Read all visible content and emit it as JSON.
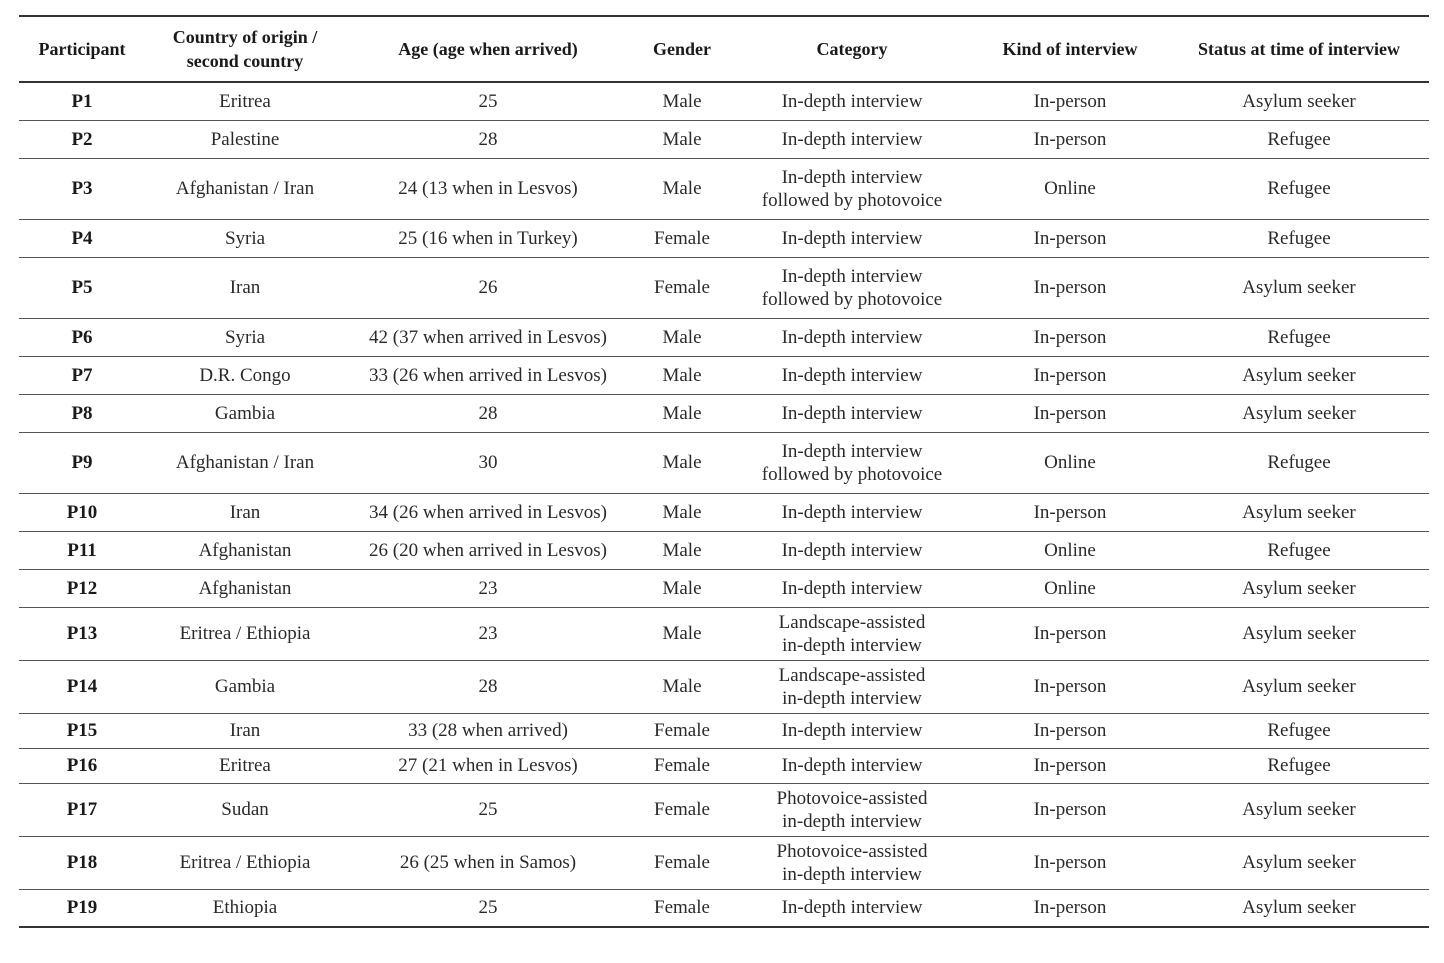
{
  "table": {
    "headers": [
      [
        "Participant"
      ],
      [
        "Country of origin /",
        "second country"
      ],
      [
        "Age (age when arrived)"
      ],
      [
        "Gender"
      ],
      [
        "Category"
      ],
      [
        "Kind of interview"
      ],
      [
        "Status at time of interview"
      ]
    ],
    "rows": [
      {
        "participant": "P1",
        "country": "Eritrea",
        "age": "25",
        "gender": "Male",
        "category": [
          "In-depth interview"
        ],
        "kind": "In-person",
        "status": "Asylum seeker"
      },
      {
        "participant": "P2",
        "country": "Palestine",
        "age": "28",
        "gender": "Male",
        "category": [
          "In-depth interview"
        ],
        "kind": "In-person",
        "status": "Refugee"
      },
      {
        "participant": "P3",
        "country": "Afghanistan / Iran",
        "age": "24 (13 when in Lesvos)",
        "gender": "Male",
        "category": [
          "In-depth interview",
          "followed by photovoice"
        ],
        "kind": "Online",
        "status": "Refugee"
      },
      {
        "participant": "P4",
        "country": "Syria",
        "age": "25 (16 when in Turkey)",
        "gender": "Female",
        "category": [
          "In-depth interview"
        ],
        "kind": "In-person",
        "status": "Refugee"
      },
      {
        "participant": "P5",
        "country": "Iran",
        "age": "26",
        "gender": "Female",
        "category": [
          "In-depth interview",
          "followed by photovoice"
        ],
        "kind": "In-person",
        "status": "Asylum seeker"
      },
      {
        "participant": "P6",
        "country": "Syria",
        "age": "42 (37 when arrived in Lesvos)",
        "gender": "Male",
        "category": [
          "In-depth interview"
        ],
        "kind": "In-person",
        "status": "Refugee"
      },
      {
        "participant": "P7",
        "country": "D.R. Congo",
        "age": "33 (26 when arrived in Lesvos)",
        "gender": "Male",
        "category": [
          "In-depth interview"
        ],
        "kind": "In-person",
        "status": "Asylum seeker"
      },
      {
        "participant": "P8",
        "country": "Gambia",
        "age": "28",
        "gender": "Male",
        "category": [
          "In-depth interview"
        ],
        "kind": "In-person",
        "status": "Asylum seeker"
      },
      {
        "participant": "P9",
        "country": "Afghanistan / Iran",
        "age": "30",
        "gender": "Male",
        "category": [
          "In-depth interview",
          "followed by photovoice"
        ],
        "kind": "Online",
        "status": "Refugee"
      },
      {
        "participant": "P10",
        "country": "Iran",
        "age": "34 (26 when arrived in Lesvos)",
        "gender": "Male",
        "category": [
          "In-depth interview"
        ],
        "kind": "In-person",
        "status": "Asylum seeker"
      },
      {
        "participant": "P11",
        "country": "Afghanistan",
        "age": "26 (20 when arrived in Lesvos)",
        "gender": "Male",
        "category": [
          "In-depth interview"
        ],
        "kind": "Online",
        "status": "Refugee"
      },
      {
        "participant": "P12",
        "country": "Afghanistan",
        "age": "23",
        "gender": "Male",
        "category": [
          "In-depth interview"
        ],
        "kind": "Online",
        "status": "Asylum seeker"
      },
      {
        "participant": "P13",
        "country": "Eritrea / Ethiopia",
        "age": "23",
        "gender": "Male",
        "category": [
          "Landscape-assisted",
          "in-depth interview"
        ],
        "kind": "In-person",
        "status": "Asylum seeker"
      },
      {
        "participant": "P14",
        "country": "Gambia",
        "age": "28",
        "gender": "Male",
        "category": [
          "Landscape-assisted",
          "in-depth interview"
        ],
        "kind": "In-person",
        "status": "Asylum seeker"
      },
      {
        "participant": "P15",
        "country": "Iran",
        "age": "33 (28 when arrived)",
        "gender": "Female",
        "category": [
          "In-depth interview"
        ],
        "kind": "In-person",
        "status": "Refugee"
      },
      {
        "participant": "P16",
        "country": "Eritrea",
        "age": "27 (21 when in Lesvos)",
        "gender": "Female",
        "category": [
          "In-depth interview"
        ],
        "kind": "In-person",
        "status": "Refugee"
      },
      {
        "participant": "P17",
        "country": "Sudan",
        "age": "25",
        "gender": "Female",
        "category": [
          "Photovoice-assisted",
          "in-depth interview"
        ],
        "kind": "In-person",
        "status": "Asylum seeker"
      },
      {
        "participant": "P18",
        "country": "Eritrea / Ethiopia",
        "age": "26 (25 when in Samos)",
        "gender": "Female",
        "category": [
          "Photovoice-assisted",
          "in-depth interview"
        ],
        "kind": "In-person",
        "status": "Asylum seeker"
      },
      {
        "participant": "P19",
        "country": "Ethiopia",
        "age": "25",
        "gender": "Female",
        "category": [
          "In-depth interview"
        ],
        "kind": "In-person",
        "status": "Asylum seeker"
      }
    ]
  }
}
